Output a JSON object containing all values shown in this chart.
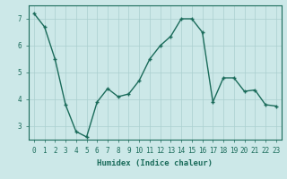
{
  "x": [
    0,
    1,
    2,
    3,
    4,
    5,
    6,
    7,
    8,
    9,
    10,
    11,
    12,
    13,
    14,
    15,
    16,
    17,
    18,
    19,
    20,
    21,
    22,
    23
  ],
  "y": [
    7.2,
    6.7,
    5.5,
    3.8,
    2.8,
    2.6,
    3.9,
    4.4,
    4.1,
    4.2,
    4.7,
    5.5,
    6.0,
    6.35,
    7.0,
    7.0,
    6.5,
    3.9,
    4.8,
    4.8,
    4.3,
    4.35,
    3.8,
    3.75
  ],
  "line_color": "#1a6b5a",
  "marker": "+",
  "marker_size": 3,
  "bg_color": "#cce8e8",
  "grid_color": "#aacfcf",
  "xlabel": "Humidex (Indice chaleur)",
  "ylim": [
    2.5,
    7.5
  ],
  "xlim": [
    -0.5,
    23.5
  ],
  "yticks": [
    3,
    4,
    5,
    6,
    7
  ],
  "xticks": [
    0,
    1,
    2,
    3,
    4,
    5,
    6,
    7,
    8,
    9,
    10,
    11,
    12,
    13,
    14,
    15,
    16,
    17,
    18,
    19,
    20,
    21,
    22,
    23
  ],
  "tick_color": "#1a6b5a",
  "label_fontsize": 6.5,
  "tick_fontsize": 5.5,
  "linewidth": 1.0,
  "markeredgewidth": 1.0
}
